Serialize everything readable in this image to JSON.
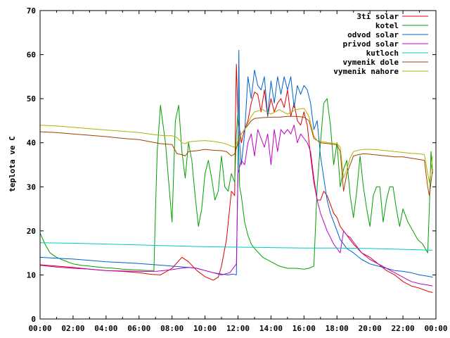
{
  "chart_data": {
    "type": "line",
    "title": "",
    "xlabel": "",
    "ylabel": "teplota ve C",
    "xlim": [
      0,
      24
    ],
    "ylim": [
      0,
      70
    ],
    "x_tick_labels": [
      "00:00",
      "02:00",
      "04:00",
      "06:00",
      "08:00",
      "10:00",
      "12:00",
      "14:00",
      "16:00",
      "18:00",
      "20:00",
      "22:00",
      "00:00"
    ],
    "y_tick_labels": [
      "0",
      "10",
      "20",
      "30",
      "40",
      "50",
      "60",
      "70"
    ],
    "legend_position": "top-right",
    "series": [
      {
        "name": "3ti solar",
        "color": "#dd0000",
        "x": [
          0,
          1,
          2,
          3,
          4,
          5,
          6,
          6.8,
          7.3,
          8,
          8.6,
          9,
          9.5,
          10,
          10.5,
          10.8,
          11,
          11.3,
          11.6,
          11.8,
          11.85,
          11.9,
          12,
          12.2,
          12.4,
          12.6,
          12.8,
          13,
          13.2,
          13.4,
          13.6,
          13.8,
          14,
          14.2,
          14.4,
          14.6,
          14.8,
          15,
          15.2,
          15.4,
          15.6,
          15.8,
          16,
          16.2,
          16.4,
          16.6,
          16.8,
          17,
          17.2,
          17.4,
          17.6,
          17.8,
          18,
          18.2,
          18.4,
          18.6,
          18.8,
          19,
          19.5,
          20,
          20.5,
          21,
          21.5,
          22,
          22.5,
          23,
          23.5,
          23.8
        ],
        "y": [
          12.3,
          12,
          11.7,
          11.3,
          11,
          10.8,
          10.5,
          10.1,
          10,
          11.5,
          14,
          13,
          11,
          9.6,
          8.8,
          9.5,
          12,
          18,
          29,
          28,
          47,
          57.8,
          46,
          40,
          43,
          45,
          49,
          51.5,
          51,
          47,
          52,
          46,
          50,
          47,
          49,
          50,
          48,
          52,
          46,
          49,
          45,
          44,
          47,
          44,
          37,
          31,
          27,
          27,
          29,
          28,
          26,
          24,
          23,
          21,
          20,
          19,
          18,
          17,
          15,
          14,
          12.5,
          11,
          10,
          8.5,
          7.5,
          7,
          6.3,
          6
        ]
      },
      {
        "name": "kotel",
        "color": "#00a000",
        "x": [
          0,
          0.3,
          0.6,
          1,
          1.5,
          2,
          2.5,
          3,
          3.5,
          4,
          4.5,
          5,
          5.5,
          6,
          6.5,
          6.9,
          7,
          7.1,
          7.3,
          7.6,
          8,
          8.2,
          8.4,
          8.6,
          8.8,
          9,
          9.2,
          9.4,
          9.6,
          9.8,
          10,
          10.2,
          10.4,
          10.6,
          10.8,
          11,
          11.2,
          11.4,
          11.6,
          11.8,
          11.9,
          12,
          12.1,
          12.2,
          12.4,
          12.6,
          12.8,
          13,
          13.5,
          14,
          14.5,
          15,
          15.5,
          16,
          16.3,
          16.6,
          16.8,
          17,
          17.2,
          17.4,
          17.6,
          17.8,
          18,
          18.2,
          18.4,
          18.6,
          18.8,
          19,
          19.2,
          19.4,
          19.6,
          19.8,
          20,
          20.2,
          20.4,
          20.6,
          20.8,
          21,
          21.2,
          21.4,
          21.6,
          21.8,
          22,
          22.3,
          22.6,
          22.9,
          23.2,
          23.5,
          23.6,
          23.7,
          23.8
        ],
        "y": [
          19.5,
          17,
          15,
          14,
          13.2,
          12.5,
          12.2,
          12,
          11.8,
          11.6,
          11.5,
          11.3,
          11.2,
          11.1,
          11,
          11,
          25,
          38,
          48.5,
          40,
          22,
          45,
          48.5,
          38,
          32,
          40,
          36,
          28,
          21,
          25,
          33,
          36,
          32,
          27,
          29,
          37,
          30,
          29,
          33,
          31,
          42,
          47,
          30,
          28,
          22,
          19,
          17,
          16,
          14,
          13,
          12,
          11.5,
          11.5,
          11.3,
          11.5,
          12,
          30,
          40,
          49,
          50,
          44,
          35,
          40,
          30,
          34,
          36,
          28,
          23,
          29,
          37,
          30,
          25,
          21,
          28,
          30,
          30,
          22,
          27,
          30,
          30,
          25,
          21,
          25,
          22,
          20,
          18,
          17,
          15,
          25,
          38,
          33
        ]
      },
      {
        "name": "odvod solar",
        "color": "#0060d0",
        "x": [
          0,
          1,
          2,
          3,
          4,
          5,
          6,
          7,
          8,
          9,
          9.5,
          10,
          10.5,
          11,
          11.4,
          11.7,
          11.9,
          12,
          12.05,
          12.1,
          12.2,
          12.4,
          12.6,
          12.8,
          13,
          13.2,
          13.4,
          13.6,
          13.8,
          14,
          14.2,
          14.4,
          14.6,
          14.8,
          15,
          15.2,
          15.4,
          15.6,
          15.8,
          16,
          16.2,
          16.4,
          16.6,
          16.8,
          17,
          17.2,
          17.4,
          17.6,
          17.8,
          18,
          18.2,
          18.4,
          18.6,
          18.8,
          19,
          19.5,
          20,
          20.5,
          21,
          21.5,
          22,
          22.5,
          23,
          23.5,
          23.8
        ],
        "y": [
          14,
          13.8,
          13.6,
          13.3,
          13,
          12.8,
          12.6,
          12.3,
          12,
          11.7,
          11.5,
          11,
          10.5,
          10.2,
          10,
          10.2,
          10,
          35,
          61,
          40,
          35,
          42,
          55,
          50,
          56.5,
          53,
          52,
          55,
          46,
          54,
          49,
          55,
          51,
          55,
          52,
          55,
          48,
          53,
          51,
          53,
          52,
          49,
          43,
          45,
          37,
          32,
          27,
          24,
          22,
          20,
          18,
          17,
          16,
          15.5,
          15,
          13.5,
          12.5,
          12,
          11.5,
          11,
          10.8,
          10.5,
          10,
          9.7,
          9.5
        ]
      },
      {
        "name": "privod solar",
        "color": "#c000c0",
        "x": [
          0,
          1,
          2,
          3,
          4,
          5,
          6,
          7,
          7.5,
          8,
          8.5,
          9,
          9.5,
          10,
          10.5,
          11,
          11.5,
          11.9,
          12,
          12.2,
          12.4,
          12.6,
          12.8,
          13,
          13.2,
          13.4,
          13.6,
          13.8,
          14,
          14.2,
          14.4,
          14.6,
          14.8,
          15,
          15.2,
          15.4,
          15.6,
          15.8,
          16,
          16.2,
          16.4,
          16.6,
          16.8,
          17,
          17.2,
          17.4,
          17.6,
          17.8,
          18,
          18.2,
          18.4,
          18.6,
          18.8,
          19,
          19.5,
          20,
          20.5,
          21,
          21.5,
          22,
          22.5,
          23,
          23.5,
          23.8
        ],
        "y": [
          12.2,
          11.8,
          11.5,
          11.3,
          11,
          10.9,
          10.8,
          10.8,
          11,
          11.2,
          11.5,
          11.7,
          11.5,
          11,
          10.5,
          10,
          10.5,
          12.5,
          33,
          36,
          35,
          40,
          42,
          37,
          43,
          41,
          39,
          42,
          35,
          43,
          38,
          43,
          42,
          43,
          42,
          44,
          40,
          42,
          41,
          40,
          38,
          32,
          27,
          24,
          22,
          20,
          18.5,
          17,
          16,
          15,
          20,
          19,
          18.5,
          17.5,
          15,
          13.5,
          12.5,
          11.5,
          10.5,
          9.5,
          8.5,
          8,
          7.7,
          7.5
        ]
      },
      {
        "name": "kutloch",
        "color": "#00c8c8",
        "x": [
          0,
          2,
          4,
          6,
          8,
          10,
          12,
          14,
          16,
          18,
          20,
          22,
          23.8
        ],
        "y": [
          17.3,
          17.2,
          17,
          16.8,
          16.6,
          16.4,
          16.3,
          16.2,
          16.1,
          16.1,
          16,
          15.8,
          15.6
        ]
      },
      {
        "name": "vymenik dole",
        "color": "#a04000",
        "x": [
          0,
          1,
          2,
          3,
          4,
          5,
          6,
          7,
          7.3,
          7.6,
          8,
          8.3,
          8.6,
          8.8,
          9,
          9.5,
          10,
          10.5,
          11,
          11.3,
          11.6,
          11.8,
          12,
          12.2,
          12.4,
          12.6,
          12.8,
          13,
          13.5,
          14,
          14.5,
          15,
          15.5,
          16,
          16.3,
          16.6,
          16.8,
          17,
          17.5,
          18,
          18.2,
          18.4,
          18.6,
          18.8,
          19,
          19.3,
          19.6,
          20,
          20.5,
          21,
          21.5,
          22,
          22.5,
          23,
          23.3,
          23.5,
          23.6,
          23.8
        ],
        "y": [
          42.5,
          42.3,
          42,
          41.7,
          41.4,
          41,
          40.7,
          40,
          39.8,
          39.7,
          39.6,
          37.5,
          37.3,
          37,
          38,
          38.2,
          38.5,
          38.3,
          38.2,
          38,
          37,
          37.5,
          40,
          42,
          43,
          44,
          45,
          45.5,
          45.7,
          45.8,
          45.8,
          46,
          46,
          45.8,
          45,
          41,
          40.5,
          40,
          39.8,
          39.5,
          38,
          29,
          33,
          35,
          37,
          37.3,
          37.5,
          37.4,
          37.2,
          37,
          36.8,
          36.8,
          36.5,
          36.2,
          36,
          30,
          28,
          34
        ]
      },
      {
        "name": "vymenik nahore",
        "color": "#b0b000",
        "x": [
          0,
          1,
          2,
          3,
          4,
          5,
          6,
          7,
          7.3,
          7.6,
          8,
          8.3,
          8.6,
          8.8,
          9,
          9.5,
          10,
          10.5,
          11,
          11.3,
          11.6,
          11.8,
          12,
          12.2,
          12.4,
          12.6,
          12.8,
          13,
          13.5,
          14,
          14.5,
          15,
          15.5,
          16,
          16.3,
          16.6,
          16.8,
          17,
          17.5,
          18,
          18.2,
          18.4,
          18.6,
          18.8,
          19,
          19.3,
          19.6,
          20,
          20.5,
          21,
          21.5,
          22,
          22.5,
          23,
          23.3,
          23.5,
          23.6,
          23.8
        ],
        "y": [
          44,
          43.8,
          43.5,
          43.2,
          42.9,
          42.6,
          42.3,
          41.8,
          41.7,
          41.6,
          41.6,
          41.2,
          40,
          39.8,
          40.2,
          40.4,
          40.5,
          40.3,
          40,
          39.7,
          39.2,
          39,
          40.5,
          42,
          43,
          44.5,
          46,
          47,
          47.5,
          46.5,
          47.5,
          46.5,
          47.5,
          47.8,
          46,
          41.5,
          40.5,
          40.3,
          40,
          39.8,
          39,
          32,
          34,
          36.5,
          38,
          38.3,
          38.5,
          38.5,
          38.4,
          38.2,
          38,
          37.8,
          37.6,
          37.5,
          37.3,
          33,
          31,
          37
        ]
      }
    ]
  }
}
